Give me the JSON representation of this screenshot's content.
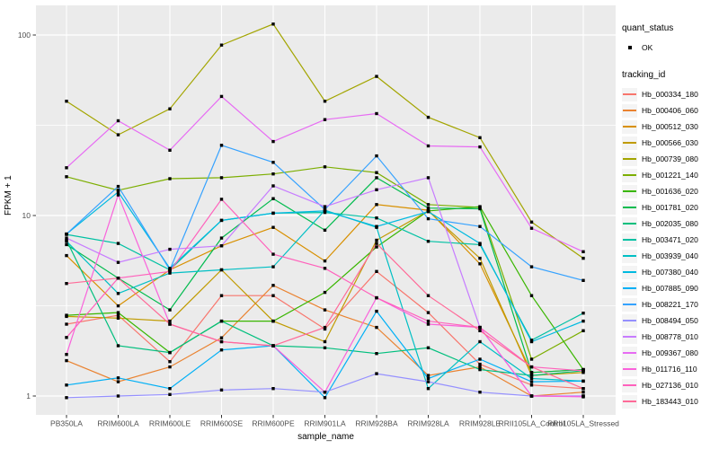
{
  "legend": {
    "quant_status_title": "quant_status",
    "ok_label": "OK",
    "tracking_id_title": "tracking_id"
  },
  "chart_data": {
    "type": "line",
    "title": "",
    "xlabel": "sample_name",
    "ylabel": "FPKM + 1",
    "y_scale": "log10",
    "y_ticks": [
      1,
      10,
      100
    ],
    "y_minor_ticks": [
      3.162,
      31.62
    ],
    "ylim": [
      0.95,
      130
    ],
    "grid": "on",
    "legend_position": "right",
    "panel_bg": "#EBEBEB",
    "grid_color": "#FFFFFF",
    "point_color": "#000000",
    "tick_label_color": "#4D4D4D",
    "quant_status": "OK",
    "x_categories": [
      "PB350LA",
      "RRIM600LA",
      "RRIM600LE",
      "RRIM600SE",
      "RRIM600PE",
      "RRIM901LA",
      "RRIM928BA",
      "RRIM928LA",
      "RRIM928LE",
      "RRII105LA_Control",
      "RRII105LA_Stressed"
    ],
    "series": [
      {
        "name": "Hb_000334_180",
        "color": "#F8766D",
        "values": [
          2.5,
          2.8,
          1.55,
          3.6,
          3.6,
          2.35,
          4.9,
          2.9,
          1.5,
          1.15,
          1.1
        ]
      },
      {
        "name": "Hb_000406_060",
        "color": "#EA8331",
        "values": [
          1.57,
          1.2,
          1.45,
          2.1,
          4.1,
          3.0,
          2.4,
          1.3,
          1.45,
          1.0,
          1.05
        ]
      },
      {
        "name": "Hb_000512_030",
        "color": "#D89000",
        "values": [
          6.0,
          3.16,
          5.0,
          6.8,
          8.6,
          5.6,
          11.5,
          10.7,
          5.4,
          1.35,
          1.4
        ]
      },
      {
        "name": "Hb_000566_030",
        "color": "#C09B00",
        "values": [
          2.76,
          2.7,
          2.6,
          5.0,
          2.6,
          2.0,
          7.3,
          10.6,
          5.8,
          1.3,
          1.35
        ]
      },
      {
        "name": "Hb_000739_080",
        "color": "#A3A500",
        "values": [
          43,
          28,
          39,
          88,
          115,
          43,
          59,
          35,
          27,
          9.2,
          5.8
        ]
      },
      {
        "name": "Hb_001221_140",
        "color": "#7CAE00",
        "values": [
          16.4,
          13.8,
          16.0,
          16.2,
          17.0,
          18.6,
          17.3,
          11.5,
          11.1,
          1.6,
          2.3
        ]
      },
      {
        "name": "Hb_001636_020",
        "color": "#39B600",
        "values": [
          2.8,
          2.9,
          1.74,
          2.6,
          2.6,
          3.75,
          6.7,
          10.6,
          11.2,
          3.6,
          1.4
        ]
      },
      {
        "name": "Hb_001781_020",
        "color": "#00BB4E",
        "values": [
          6.9,
          4.5,
          3.0,
          7.5,
          12.4,
          8.3,
          16.2,
          11.0,
          10.9,
          1.35,
          1.4
        ]
      },
      {
        "name": "Hb_002035_080",
        "color": "#00BF7D",
        "values": [
          7.3,
          1.9,
          1.74,
          2.6,
          1.9,
          1.85,
          1.72,
          1.85,
          1.4,
          1.3,
          1.38
        ]
      },
      {
        "name": "Hb_003471_020",
        "color": "#00C1A3",
        "values": [
          7.85,
          7.0,
          5.0,
          9.4,
          10.3,
          10.4,
          9.7,
          7.2,
          6.9,
          2.04,
          2.88
        ]
      },
      {
        "name": "Hb_003939_040",
        "color": "#00BFC4",
        "values": [
          7.2,
          3.7,
          4.8,
          5.0,
          5.2,
          10.7,
          8.6,
          1.1,
          2.0,
          1.25,
          1.21
        ]
      },
      {
        "name": "Hb_007380_040",
        "color": "#00BAE0",
        "values": [
          7.9,
          13.5,
          5.1,
          9.4,
          10.3,
          10.6,
          8.7,
          10.5,
          7.0,
          2.0,
          2.6
        ]
      },
      {
        "name": "Hb_007885_090",
        "color": "#00B0F6",
        "values": [
          1.15,
          1.26,
          1.1,
          1.8,
          1.9,
          0.98,
          2.95,
          1.25,
          1.6,
          1.2,
          1.21
        ]
      },
      {
        "name": "Hb_008221_170",
        "color": "#35A2FF",
        "values": [
          7.9,
          14.5,
          5.0,
          24.5,
          19.7,
          10.8,
          21.4,
          9.6,
          8.7,
          5.2,
          4.37
        ]
      },
      {
        "name": "Hb_008494_050",
        "color": "#9590FF",
        "values": [
          0.98,
          1.0,
          1.02,
          1.08,
          1.1,
          1.05,
          1.33,
          1.2,
          1.05,
          1.0,
          1.0
        ]
      },
      {
        "name": "Hb_008778_010",
        "color": "#C77CFF",
        "values": [
          7.5,
          5.5,
          6.5,
          6.8,
          14.6,
          11.2,
          13.9,
          16.2,
          2.4,
          1.0,
          1.0
        ]
      },
      {
        "name": "Hb_009367_080",
        "color": "#E76BF3",
        "values": [
          18.4,
          33.5,
          23.0,
          45.7,
          25.7,
          34.0,
          36.7,
          24.3,
          24.0,
          8.5,
          6.3
        ]
      },
      {
        "name": "Hb_011716_110",
        "color": "#FA62DB",
        "values": [
          1.7,
          13.0,
          2.5,
          2.0,
          1.9,
          1.05,
          3.5,
          2.5,
          2.4,
          1.0,
          0.99
        ]
      },
      {
        "name": "Hb_027136_010",
        "color": "#FF62BC",
        "values": [
          2.11,
          4.5,
          4.9,
          12.3,
          6.1,
          5.1,
          3.5,
          2.6,
          2.4,
          1.45,
          1.38
        ]
      },
      {
        "name": "Hb_183443_010",
        "color": "#FF6A98",
        "values": [
          4.2,
          4.5,
          2.5,
          2.0,
          1.9,
          2.4,
          7.0,
          3.6,
          2.3,
          1.45,
          1.1
        ]
      }
    ]
  }
}
